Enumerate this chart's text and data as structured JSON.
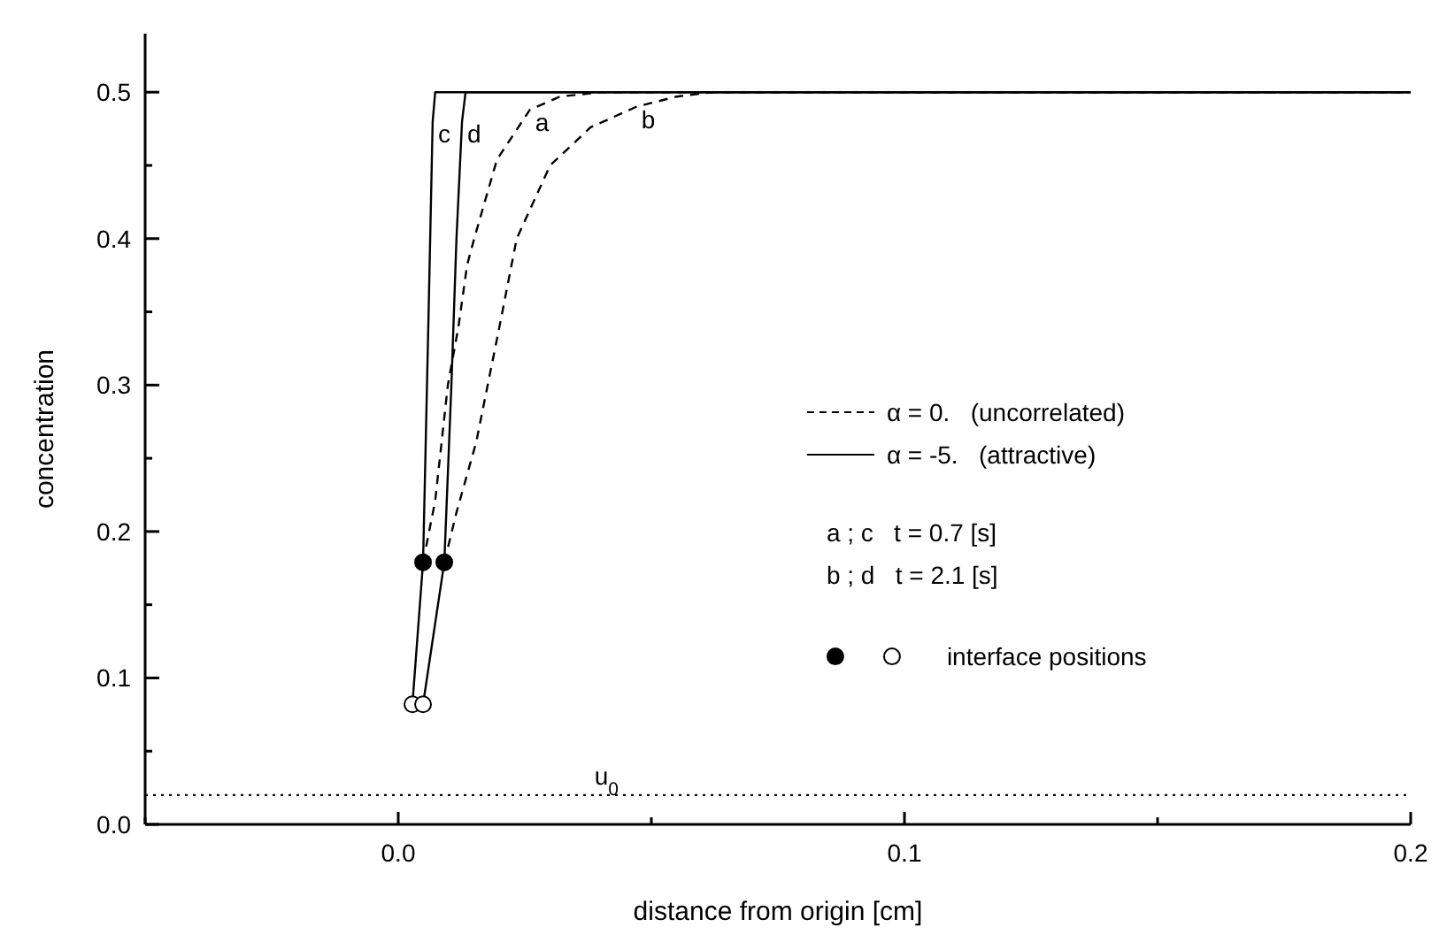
{
  "chart_data": {
    "type": "line",
    "xlabel": "distance from origin  [cm]",
    "ylabel": "concentration",
    "xlim": [
      -0.05,
      0.2
    ],
    "xticks": [
      {
        "value": -0.05,
        "label": null
      },
      {
        "value": 0,
        "label": "0.0"
      },
      {
        "value": 0.05,
        "label": null
      },
      0.1,
      {
        "value": 0.15,
        "label": null
      },
      0.2
    ],
    "ylim": [
      0,
      0.54
    ],
    "yticks": [
      {
        "value": 0,
        "label": "0.0"
      },
      {
        "value": 0.05,
        "label": null
      },
      0.1,
      {
        "value": 0.15,
        "label": null
      },
      0.2,
      {
        "value": 0.25,
        "label": null
      },
      0.3,
      {
        "value": 0.35,
        "label": null
      },
      0.4,
      {
        "value": 0.45,
        "label": null
      },
      0.5
    ],
    "grid": false,
    "legend": "right",
    "series": [
      {
        "name": "a",
        "line_style": "dashed",
        "color": "#000000",
        "x": [
          0.0049,
          0.0073,
          0.0098,
          0.0119,
          0.0136,
          0.015,
          0.0195,
          0.026,
          0.032,
          0.04,
          0.2
        ],
        "values": [
          0.179,
          0.221,
          0.3,
          0.34,
          0.382,
          0.4,
          0.454,
          0.488,
          0.497,
          0.5,
          0.5
        ]
      },
      {
        "name": "b",
        "line_style": "dashed",
        "color": "#000000",
        "x": [
          0.0091,
          0.0115,
          0.0154,
          0.02,
          0.0234,
          0.03,
          0.038,
          0.047,
          0.055,
          0.062,
          0.2
        ],
        "values": [
          0.179,
          0.213,
          0.261,
          0.34,
          0.4,
          0.45,
          0.476,
          0.49,
          0.497,
          0.5,
          0.5
        ]
      },
      {
        "name": "c",
        "line_style": "solid",
        "color": "#000000",
        "x": [
          0.0028,
          0.0049,
          0.006,
          0.0068,
          0.0073,
          0.2
        ],
        "values": [
          0.082,
          0.179,
          0.35,
          0.48,
          0.5,
          0.5
        ]
      },
      {
        "name": "d",
        "line_style": "solid",
        "color": "#000000",
        "x": [
          0.0049,
          0.0091,
          0.0105,
          0.0115,
          0.0126,
          0.0133,
          0.2
        ],
        "values": [
          0.082,
          0.179,
          0.3,
          0.4,
          0.48,
          0.5,
          0.5
        ]
      },
      {
        "type": "scatter",
        "marker": "circle",
        "color": "#000000",
        "x": [
          0.0049,
          0.0091
        ],
        "values": [
          0.179,
          0.179
        ]
      },
      {
        "name": "interface positions",
        "type": "scatter",
        "marker": "circle",
        "color": "#ffffff",
        "x": [
          0.0028,
          0.0049
        ],
        "values": [
          0.082,
          0.082
        ]
      }
    ],
    "ref_lines": [
      {
        "axis": "y",
        "value": 0.02,
        "label": "u$_{0}$",
        "line_style": "dotted",
        "color": "#000000"
      }
    ],
    "annotations": [
      "α = 0.   (uncorrelated)",
      "α = -5.   (attractive)",
      "a ; c   t = 0.7 [s]",
      "b ; d   t = 2.1 [s]"
    ]
  }
}
